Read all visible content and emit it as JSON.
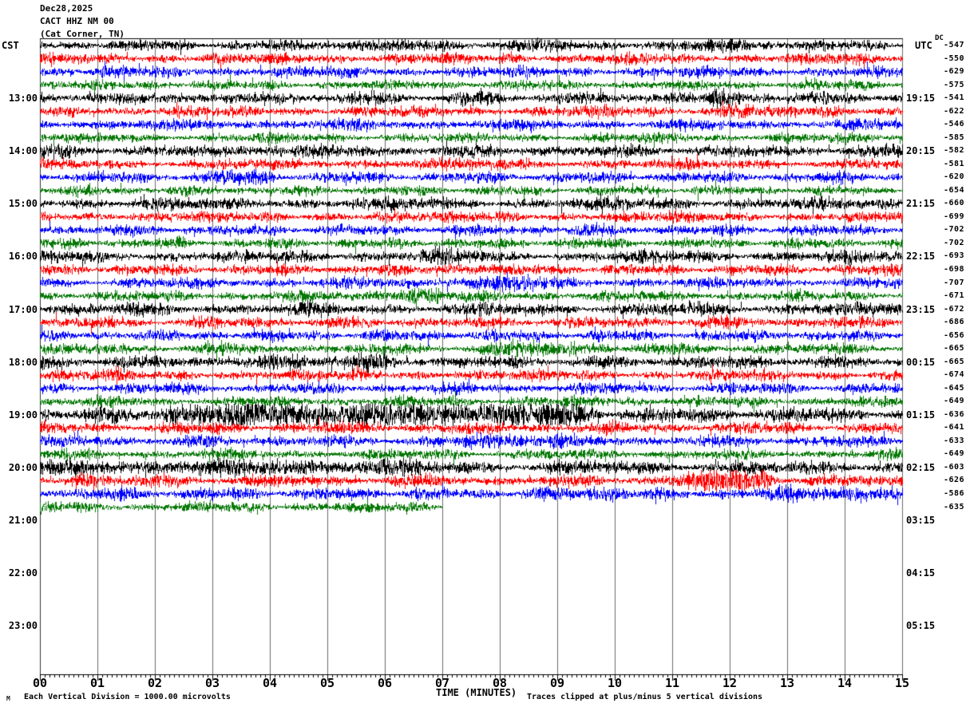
{
  "title": {
    "date": "Dec28,2025",
    "station": "CACT HHZ NM 00",
    "location": "(Cat Corner, TN)"
  },
  "axes": {
    "left_header": "CST",
    "right_header": "UTC",
    "dc_header": "DC",
    "left_labels": [
      "13:00",
      "14:00",
      "15:00",
      "16:00",
      "17:00",
      "18:00",
      "19:00",
      "20:00",
      "21:00",
      "22:00",
      "23:00"
    ],
    "right_labels": [
      "19:15",
      "20:15",
      "21:15",
      "22:15",
      "23:15",
      "00:15",
      "01:15",
      "02:15",
      "03:15",
      "04:15",
      "05:15"
    ],
    "bottom_label": "TIME (MINUTES)",
    "bottom_ticks": [
      "00",
      "01",
      "02",
      "03",
      "04",
      "05",
      "06",
      "07",
      "08",
      "09",
      "10",
      "11",
      "12",
      "13",
      "14",
      "15"
    ]
  },
  "footnotes": {
    "scale": "Each Vertical Division = 1000.00 microvolts",
    "clip": "Traces clipped at plus/minus 5 vertical divisions",
    "watermark": "M"
  },
  "chart_data": {
    "type": "line",
    "subtype": "helicorder-seismogram",
    "title": "CACT HHZ NM 00 (Cat Corner, TN) Dec28,2025",
    "xlabel": "TIME (MINUTES)",
    "x_range": [
      0,
      15
    ],
    "x_tick_interval_min": 1,
    "minutes_per_line": 15,
    "timezone_left": "CST",
    "timezone_right": "UTC",
    "left_hour_marks": [
      "13:00",
      "14:00",
      "15:00",
      "16:00",
      "17:00",
      "18:00",
      "19:00",
      "20:00",
      "21:00",
      "22:00",
      "23:00"
    ],
    "right_utc_marks": [
      "19:15",
      "20:15",
      "21:15",
      "22:15",
      "23:15",
      "00:15",
      "01:15",
      "02:15",
      "03:15",
      "04:15",
      "05:15"
    ],
    "scale_note": "Each Vertical Division = 1000.00 microvolts",
    "clip_note": "Traces clipped at plus/minus 5 vertical divisions",
    "colors_cycle": [
      "#000000",
      "#ff0000",
      "#0000ff",
      "#067806"
    ],
    "grid_color": "#6b6b6b",
    "border_color": "#000000",
    "dc_offsets": [
      -547,
      -550,
      -629,
      -575,
      -541,
      -622,
      -546,
      -585,
      -582,
      -581,
      -620,
      -654,
      -660,
      -699,
      -702,
      -702,
      -693,
      -698,
      -707,
      -671,
      -672,
      -686,
      -656,
      -665,
      -665,
      -674,
      -645,
      -649,
      -636,
      -641,
      -633,
      -649,
      -603,
      -626,
      -586,
      -635
    ],
    "traces": [
      {
        "dc": -547,
        "amp": 4.5,
        "end": 1,
        "bursts": [
          [
            5.5,
            5.8,
            3
          ],
          [
            8.3,
            8.6,
            3
          ],
          [
            11.8,
            12.2,
            4
          ]
        ]
      },
      {
        "dc": -550,
        "amp": 4.5,
        "end": 1,
        "bursts": []
      },
      {
        "dc": -629,
        "amp": 4.5,
        "end": 1,
        "bursts": []
      },
      {
        "dc": -575,
        "amp": 4.0,
        "end": 1,
        "bursts": []
      },
      {
        "dc": -541,
        "amp": 5.0,
        "end": 1,
        "bursts": [
          [
            11.7,
            12.0,
            6
          ]
        ]
      },
      {
        "dc": -622,
        "amp": 4.5,
        "end": 1,
        "bursts": [
          [
            11.9,
            12.3,
            4
          ]
        ]
      },
      {
        "dc": -546,
        "amp": 4.5,
        "end": 1,
        "bursts": []
      },
      {
        "dc": -585,
        "amp": 4.0,
        "end": 1,
        "bursts": []
      },
      {
        "dc": -582,
        "amp": 5.0,
        "end": 1,
        "bursts": [
          [
            3.5,
            4.2,
            2
          ]
        ]
      },
      {
        "dc": -581,
        "amp": 4.5,
        "end": 1,
        "bursts": []
      },
      {
        "dc": -620,
        "amp": 4.5,
        "end": 1,
        "bursts": [
          [
            3.2,
            3.9,
            3
          ]
        ]
      },
      {
        "dc": -654,
        "amp": 4.0,
        "end": 1,
        "bursts": []
      },
      {
        "dc": -660,
        "amp": 5.0,
        "end": 1,
        "bursts": []
      },
      {
        "dc": -699,
        "amp": 4.5,
        "end": 1,
        "bursts": []
      },
      {
        "dc": -702,
        "amp": 4.5,
        "end": 1,
        "bursts": []
      },
      {
        "dc": -702,
        "amp": 4.2,
        "end": 1,
        "bursts": []
      },
      {
        "dc": -693,
        "amp": 5.0,
        "end": 1,
        "bursts": [
          [
            6.8,
            7.6,
            2
          ]
        ]
      },
      {
        "dc": -698,
        "amp": 4.5,
        "end": 1,
        "bursts": [
          [
            7.0,
            7.8,
            2
          ]
        ]
      },
      {
        "dc": -707,
        "amp": 4.5,
        "end": 1,
        "bursts": [
          [
            7.2,
            8.6,
            3
          ]
        ]
      },
      {
        "dc": -671,
        "amp": 4.3,
        "end": 1,
        "bursts": [
          [
            5.9,
            7.0,
            3
          ]
        ]
      },
      {
        "dc": -672,
        "amp": 5.2,
        "end": 1,
        "bursts": []
      },
      {
        "dc": -686,
        "amp": 4.6,
        "end": 1,
        "bursts": []
      },
      {
        "dc": -656,
        "amp": 4.4,
        "end": 1,
        "bursts": []
      },
      {
        "dc": -665,
        "amp": 4.4,
        "end": 1,
        "bursts": [
          [
            7.8,
            9.8,
            3
          ]
        ]
      },
      {
        "dc": -665,
        "amp": 5.2,
        "end": 1,
        "bursts": [
          [
            4.0,
            6.0,
            2
          ]
        ]
      },
      {
        "dc": -674,
        "amp": 4.6,
        "end": 1,
        "bursts": []
      },
      {
        "dc": -645,
        "amp": 4.4,
        "end": 1,
        "bursts": []
      },
      {
        "dc": -649,
        "amp": 4.3,
        "end": 1,
        "bursts": []
      },
      {
        "dc": -636,
        "amp": 6.0,
        "end": 1,
        "bursts": [
          [
            2.3,
            9.6,
            6
          ]
        ]
      },
      {
        "dc": -641,
        "amp": 4.8,
        "end": 1,
        "bursts": []
      },
      {
        "dc": -633,
        "amp": 4.6,
        "end": 1,
        "bursts": [
          [
            7.4,
            9.2,
            3
          ]
        ]
      },
      {
        "dc": -649,
        "amp": 4.3,
        "end": 1,
        "bursts": []
      },
      {
        "dc": -603,
        "amp": 5.5,
        "end": 1,
        "bursts": [
          [
            0.5,
            6.5,
            2
          ]
        ]
      },
      {
        "dc": -626,
        "amp": 4.8,
        "end": 1,
        "bursts": [
          [
            0.6,
            0.9,
            4
          ],
          [
            11.3,
            12.7,
            6
          ]
        ]
      },
      {
        "dc": -586,
        "amp": 5.0,
        "end": 1,
        "bursts": [
          [
            9.6,
            10.1,
            3
          ],
          [
            12.9,
            14.2,
            3
          ]
        ]
      },
      {
        "dc": -635,
        "amp": 4.3,
        "end": 0.467,
        "bursts": []
      }
    ]
  }
}
